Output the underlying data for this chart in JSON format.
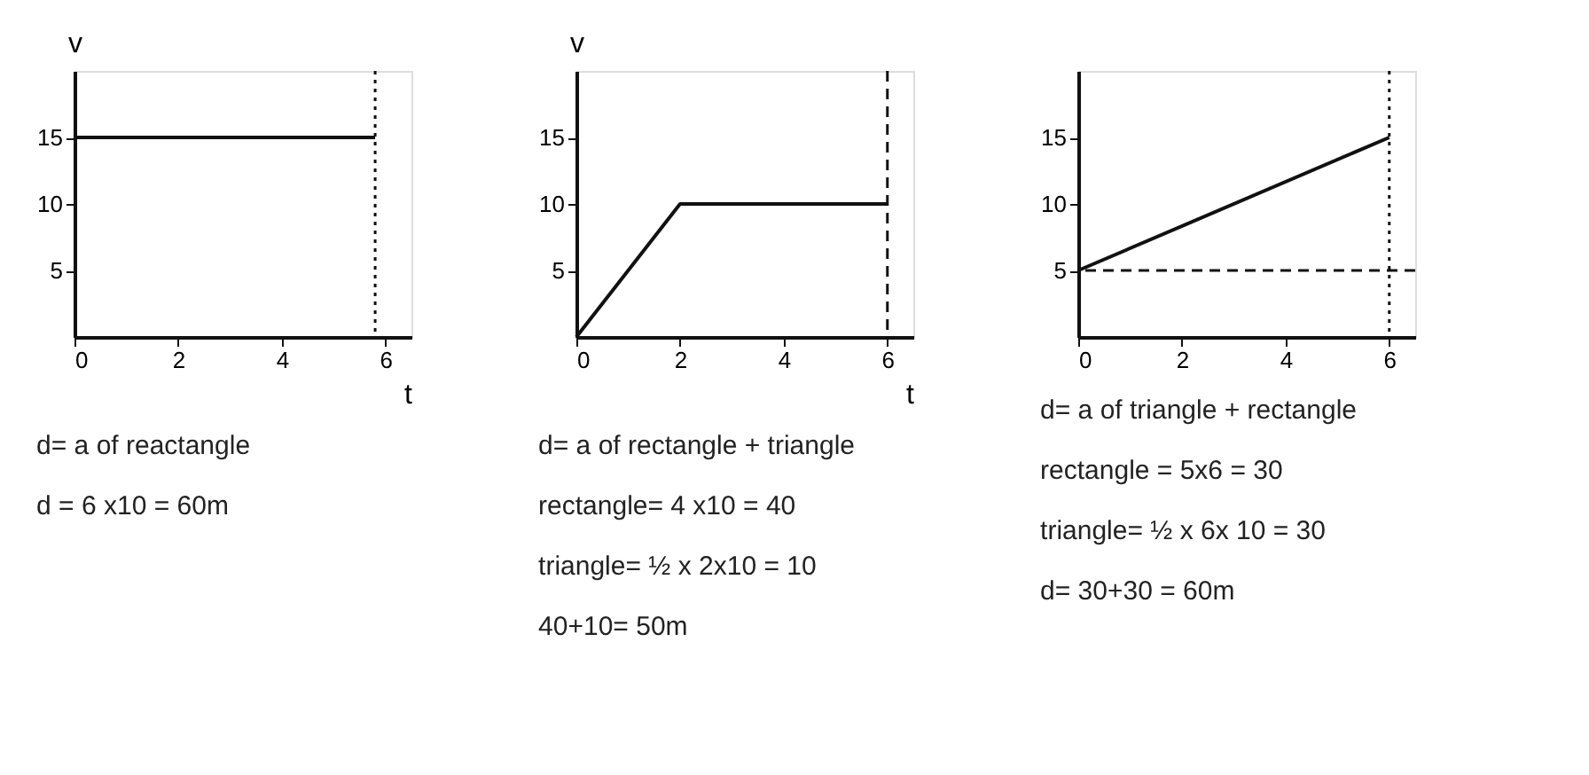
{
  "chart_data": [
    {
      "type": "line",
      "x": [
        0,
        5.8
      ],
      "series": [
        {
          "color": "#111111",
          "values": [
            15,
            15
          ]
        }
      ],
      "xlim": [
        0,
        6.5
      ],
      "ylim": [
        0,
        20
      ],
      "xticks": [
        0,
        2,
        4,
        6
      ],
      "yticks": [
        5,
        10,
        15
      ],
      "xlabel": "t",
      "ylabel": "v",
      "grid": false,
      "marker": "none",
      "line_style": "solid",
      "ref_lines": [
        {
          "axis": "x",
          "value": 5.8,
          "label": null,
          "color": "#111111",
          "line_style": "dotted"
        }
      ],
      "annotations": [
        "d= a of reactangle",
        "d = 6 x10 = 60m"
      ]
    },
    {
      "type": "line",
      "x": [
        0,
        2,
        6
      ],
      "series": [
        {
          "color": "#111111",
          "values": [
            0,
            10,
            10
          ]
        }
      ],
      "xlim": [
        0,
        6.5
      ],
      "ylim": [
        0,
        20
      ],
      "xticks": [
        0,
        2,
        4,
        6
      ],
      "yticks": [
        5,
        10,
        15
      ],
      "xlabel": "t",
      "ylabel": "v",
      "grid": false,
      "marker": "none",
      "line_style": "solid",
      "ref_lines": [
        {
          "axis": "x",
          "value": 6,
          "label": null,
          "color": "#111111",
          "line_style": "dashed"
        }
      ],
      "annotations": [
        "d= a of rectangle + triangle",
        "rectangle= 4 x10 = 40",
        "triangle= ½ x 2x10 = 10",
        "40+10= 50m"
      ]
    },
    {
      "type": "line",
      "x": [
        0,
        6
      ],
      "series": [
        {
          "color": "#111111",
          "values": [
            5,
            15
          ]
        }
      ],
      "xlim": [
        0,
        6.5
      ],
      "ylim": [
        0,
        20
      ],
      "xticks": [
        0,
        2,
        4,
        6
      ],
      "yticks": [
        5,
        10,
        15
      ],
      "grid": false,
      "marker": "none",
      "line_style": "solid",
      "ref_lines": [
        {
          "axis": "x",
          "value": 6,
          "label": null,
          "color": "#111111",
          "line_style": "dotted"
        },
        {
          "axis": "y",
          "value": 5,
          "label": null,
          "color": "#111111",
          "line_style": "dashed"
        }
      ],
      "annotations": [
        "d= a of triangle + rectangle",
        "rectangle = 5x6 = 30",
        "triangle= ½ x 6x 10 = 30",
        "d= 30+30 = 60m"
      ]
    }
  ]
}
